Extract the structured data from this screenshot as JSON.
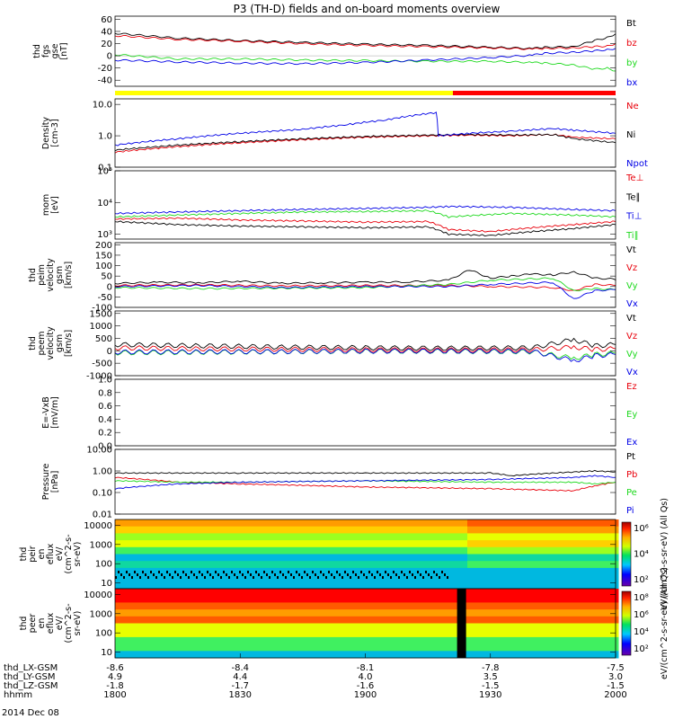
{
  "title": "P3 (TH-D) fields and on-board moments overview",
  "date_label": "2014 Dec 08",
  "colors": {
    "black": "#000000",
    "red": "#e8000b",
    "green": "#1ed91e",
    "blue": "#0000e6"
  },
  "chart_data": [
    {
      "type": "line",
      "id": "fgs",
      "ylabel": [
        "thd",
        "fgs",
        "gse",
        "[nT]"
      ],
      "ylim": [
        -50,
        65
      ],
      "yticks": [
        -40,
        -20,
        0,
        20,
        40,
        60
      ],
      "legend": [
        "Bt",
        "bz",
        "by",
        "bx"
      ],
      "legend_colors": [
        "black",
        "red",
        "green",
        "blue"
      ],
      "series": [
        {
          "name": "Bt",
          "color": "black",
          "x": [
            1800,
            1815,
            1830,
            1845,
            1900,
            1915,
            1930,
            1940,
            1943,
            1950,
            1955,
            1958,
            2000
          ],
          "y": [
            37,
            29,
            25,
            22,
            19,
            17,
            14,
            12,
            14,
            15,
            25,
            30,
            36
          ]
        },
        {
          "name": "bz",
          "color": "red",
          "x": [
            1800,
            1815,
            1830,
            1845,
            1900,
            1915,
            1930,
            1940,
            1943,
            1950,
            1955,
            1958,
            2000
          ],
          "y": [
            33,
            27,
            24,
            20,
            17,
            15,
            13,
            11,
            12,
            13,
            15,
            16,
            20
          ]
        },
        {
          "name": "by",
          "color": "green",
          "x": [
            1800,
            1815,
            1830,
            1845,
            1900,
            1915,
            1930,
            1940,
            1943,
            1950,
            1955,
            1958,
            2000
          ],
          "y": [
            2,
            -5,
            -5,
            -7,
            -8,
            -9,
            -9,
            -11,
            -12,
            -15,
            -22,
            -20,
            -25
          ]
        },
        {
          "name": "bx",
          "color": "blue",
          "x": [
            1800,
            1815,
            1830,
            1845,
            1900,
            1915,
            1930,
            1940,
            1943,
            1950,
            1955,
            1958,
            2000
          ],
          "y": [
            -7,
            -10,
            -12,
            -13,
            -11,
            -7,
            -3,
            1,
            4,
            6,
            8,
            10,
            12
          ]
        }
      ]
    },
    {
      "type": "line",
      "id": "density",
      "log": true,
      "ylabel": [
        "Density",
        "[cm-3]"
      ],
      "ylim": [
        0.1,
        15
      ],
      "yticks": [
        0.1,
        1.0,
        10.0
      ],
      "ytick_labels": [
        "0.1",
        "1.0",
        "10.0"
      ],
      "legend": [
        "Ne",
        "Ni",
        "Npot"
      ],
      "legend_colors": [
        "red",
        "black",
        "blue"
      ],
      "series": [
        {
          "name": "Ne",
          "color": "red",
          "x": [
            1800,
            1815,
            1830,
            1845,
            1900,
            1915,
            1925,
            1935,
            1945,
            1950,
            2000
          ],
          "y": [
            0.3,
            0.45,
            0.6,
            0.75,
            0.9,
            1.0,
            1.05,
            1.0,
            1.1,
            0.9,
            0.8
          ]
        },
        {
          "name": "Ni",
          "color": "black",
          "x": [
            1800,
            1815,
            1830,
            1845,
            1900,
            1915,
            1925,
            1935,
            1945,
            1950,
            2000
          ],
          "y": [
            0.35,
            0.5,
            0.65,
            0.8,
            0.95,
            1.05,
            1.1,
            1.05,
            1.1,
            0.8,
            0.6
          ]
        },
        {
          "name": "Npot",
          "color": "blue",
          "x": [
            1800,
            1815,
            1830,
            1845,
            1855,
            1905,
            1917,
            1917.5,
            1925,
            1935,
            1945,
            1950,
            2000
          ],
          "y": [
            0.5,
            0.8,
            1.2,
            1.6,
            2.2,
            3.2,
            5.5,
            1.0,
            1.2,
            1.4,
            1.7,
            1.5,
            1.2
          ]
        }
      ]
    },
    {
      "type": "line",
      "id": "temperature",
      "log": true,
      "ylabel": [
        "mom",
        "[eV]"
      ],
      "ylim": [
        700,
        100000
      ],
      "yticks": [
        1000,
        10000,
        100000
      ],
      "ytick_labels": [
        "10³",
        "10⁴",
        "10⁵"
      ],
      "legend": [
        "Te⊥",
        "Te∥",
        "Ti⊥",
        "Ti∥"
      ],
      "legend_colors": [
        "red",
        "black",
        "blue",
        "green"
      ],
      "series": [
        {
          "name": "Ti⊥",
          "color": "blue",
          "x": [
            1800,
            1815,
            1830,
            1845,
            1900,
            1915,
            1920,
            1935,
            1950,
            2000
          ],
          "y": [
            4500,
            5000,
            5500,
            6000,
            6500,
            7000,
            7500,
            7000,
            6000,
            5500
          ]
        },
        {
          "name": "Ti∥",
          "color": "green",
          "x": [
            1800,
            1815,
            1830,
            1845,
            1900,
            1915,
            1920,
            1935,
            1950,
            2000
          ],
          "y": [
            3500,
            4000,
            4500,
            5000,
            5200,
            5500,
            3500,
            4500,
            4000,
            3500
          ]
        },
        {
          "name": "Te⊥",
          "color": "red",
          "x": [
            1800,
            1815,
            1830,
            1845,
            1900,
            1915,
            1920,
            1930,
            1950,
            2000
          ],
          "y": [
            3000,
            3200,
            2800,
            2600,
            2400,
            2500,
            1400,
            1200,
            2000,
            2500
          ]
        },
        {
          "name": "Te∥",
          "color": "black",
          "x": [
            1800,
            1815,
            1830,
            1845,
            1900,
            1915,
            1920,
            1930,
            1950,
            2000
          ],
          "y": [
            2500,
            2000,
            1800,
            1700,
            1600,
            1700,
            1000,
            900,
            1500,
            2000
          ]
        }
      ]
    },
    {
      "type": "line",
      "id": "peim_velocity",
      "ylabel": [
        "thd",
        "peim",
        "velocity",
        "gsm",
        "[km/s]"
      ],
      "ylim": [
        -100,
        210
      ],
      "yticks": [
        -100,
        -50,
        0,
        50,
        100,
        150,
        200
      ],
      "legend": [
        "Vt",
        "Vz",
        "Vy",
        "Vx"
      ],
      "legend_colors": [
        "black",
        "red",
        "green",
        "blue"
      ],
      "series": [
        {
          "name": "Vt",
          "color": "black",
          "x": [
            1800,
            1810,
            1820,
            1830,
            1840,
            1850,
            1900,
            1910,
            1920,
            1925,
            1930,
            1935,
            1940,
            1945,
            1950,
            1955,
            1960,
            2000
          ],
          "y": [
            15,
            20,
            18,
            25,
            15,
            18,
            20,
            22,
            30,
            80,
            40,
            50,
            60,
            55,
            70,
            40,
            35,
            30
          ]
        },
        {
          "name": "Vz",
          "color": "red",
          "x": [
            1800,
            1820,
            1840,
            1900,
            1920,
            1930,
            1945,
            1950,
            1955,
            2000
          ],
          "y": [
            5,
            8,
            3,
            5,
            5,
            0,
            -5,
            -20,
            10,
            5
          ]
        },
        {
          "name": "Vy",
          "color": "green",
          "x": [
            1800,
            1820,
            1840,
            1900,
            1920,
            1930,
            1945,
            1950,
            1955,
            2000
          ],
          "y": [
            -5,
            -10,
            -8,
            -5,
            10,
            30,
            40,
            -20,
            -10,
            -15
          ]
        },
        {
          "name": "Vx",
          "color": "blue",
          "x": [
            1800,
            1820,
            1840,
            1900,
            1920,
            1930,
            1945,
            1950,
            1955,
            2000
          ],
          "y": [
            0,
            5,
            -5,
            0,
            0,
            10,
            20,
            -60,
            -20,
            -15
          ]
        }
      ]
    },
    {
      "type": "line",
      "id": "peem_velocity",
      "ylabel": [
        "thd",
        "peem",
        "velocity",
        "gsm",
        "[km/s]"
      ],
      "ylim": [
        -1000,
        1600
      ],
      "yticks": [
        -1000,
        -500,
        0,
        500,
        1000,
        1500
      ],
      "legend": [
        "Vt",
        "Vz",
        "Vy",
        "Vx"
      ],
      "legend_colors": [
        "black",
        "red",
        "green",
        "blue"
      ],
      "series": [
        {
          "name": "Vt",
          "color": "black",
          "x": [
            1800,
            1820,
            1840,
            1900,
            1920,
            1940,
            1950,
            1955,
            2000
          ],
          "y": [
            250,
            200,
            150,
            120,
            100,
            120,
            450,
            200,
            250
          ]
        },
        {
          "name": "Vz",
          "color": "red",
          "x": [
            1800,
            1820,
            1840,
            1900,
            1920,
            1940,
            1950,
            1955,
            2000
          ],
          "y": [
            120,
            80,
            60,
            40,
            30,
            40,
            150,
            50,
            80
          ]
        },
        {
          "name": "Vy",
          "color": "green",
          "x": [
            1800,
            1820,
            1840,
            1900,
            1920,
            1940,
            1950,
            1955,
            2000
          ],
          "y": [
            -80,
            -60,
            -40,
            -20,
            -20,
            -40,
            -300,
            -150,
            -100
          ]
        },
        {
          "name": "Vx",
          "color": "blue",
          "x": [
            1800,
            1820,
            1840,
            1900,
            1920,
            1940,
            1950,
            1955,
            2000
          ],
          "y": [
            -50,
            -40,
            -30,
            -10,
            -10,
            -20,
            -400,
            -200,
            -150
          ]
        }
      ]
    },
    {
      "type": "line",
      "id": "efield",
      "ylabel": [
        "E=-VxB",
        "[mV/m]"
      ],
      "ylim": [
        0,
        1
      ],
      "yticks": [
        0.0,
        0.2,
        0.4,
        0.6,
        0.8,
        1.0
      ],
      "ytick_labels": [
        "0.0",
        "0.2",
        "0.4",
        "0.6",
        "0.8",
        "1.0"
      ],
      "legend": [
        "Ez",
        "Ey",
        "Ex"
      ],
      "legend_colors": [
        "red",
        "green",
        "blue"
      ],
      "series": []
    },
    {
      "type": "line",
      "id": "pressure",
      "log": true,
      "ylabel": [
        "Pressure",
        "[nPa]"
      ],
      "ylim": [
        0.01,
        10
      ],
      "yticks": [
        0.01,
        0.1,
        1.0,
        10.0
      ],
      "ytick_labels": [
        "0.01",
        "0.10",
        "1.00",
        "10.00"
      ],
      "legend": [
        "Pt",
        "Pb",
        "Pe",
        "Pi"
      ],
      "legend_colors": [
        "black",
        "red",
        "green",
        "blue"
      ],
      "series": [
        {
          "name": "Pt",
          "color": "black",
          "x": [
            1800,
            1830,
            1900,
            1930,
            1935,
            1950,
            1955,
            2000
          ],
          "y": [
            0.8,
            0.8,
            0.8,
            0.8,
            0.6,
            0.9,
            1.0,
            0.9
          ]
        },
        {
          "name": "Pb",
          "color": "red",
          "x": [
            1800,
            1815,
            1830,
            1900,
            1930,
            1950,
            1955,
            2000
          ],
          "y": [
            0.5,
            0.3,
            0.25,
            0.18,
            0.15,
            0.12,
            0.2,
            0.3
          ]
        },
        {
          "name": "Pe",
          "color": "green",
          "x": [
            1800,
            1815,
            1830,
            1900,
            1930,
            1950,
            1955,
            2000
          ],
          "y": [
            0.35,
            0.3,
            0.3,
            0.35,
            0.3,
            0.3,
            0.25,
            0.3
          ]
        },
        {
          "name": "Pi",
          "color": "blue",
          "x": [
            1800,
            1815,
            1830,
            1900,
            1930,
            1950,
            1955,
            2000
          ],
          "y": [
            0.15,
            0.25,
            0.3,
            0.35,
            0.4,
            0.5,
            0.6,
            0.5
          ]
        }
      ]
    },
    {
      "type": "heatmap",
      "id": "peir_eflux",
      "log": true,
      "ylabel": [
        "thd",
        "peir",
        "en",
        "eflux",
        "eV/",
        "(cm^2-s-",
        "sr-eV)"
      ],
      "ylim": [
        5,
        20000
      ],
      "yticks": [
        10,
        100,
        1000,
        10000
      ],
      "ytick_labels": [
        "10",
        "100",
        "1000",
        "10000"
      ],
      "colorbar_label": "eV/(cm^2-s-sr-eV) (All Qs)",
      "colorbar_ticks": [
        "10²",
        "10⁴",
        "10⁶"
      ]
    },
    {
      "type": "heatmap",
      "id": "peer_eflux",
      "log": true,
      "ylabel": [
        "thd",
        "peer",
        "en",
        "eflux",
        "eV/",
        "(cm^2-s-",
        "sr-eV)"
      ],
      "ylim": [
        5,
        20000
      ],
      "yticks": [
        10,
        100,
        1000,
        10000
      ],
      "ytick_labels": [
        "10",
        "100",
        "1000",
        "10000"
      ],
      "colorbar_label": "eV/(cm^2-s-sr-eV) (All Qs)",
      "colorbar_ticks": [
        "10²",
        "10⁴",
        "10⁶",
        "10⁸"
      ]
    }
  ],
  "xaxis": {
    "xlim": [
      1800,
      2000
    ],
    "rows": [
      {
        "label": "thd_LX-GSM",
        "values": [
          "-8.6",
          "-8.4",
          "-8.1",
          "-7.8",
          "-7.5"
        ]
      },
      {
        "label": "thd_LY-GSM",
        "values": [
          "4.9",
          "4.4",
          "4.0",
          "3.5",
          "3.0"
        ]
      },
      {
        "label": "thd_LZ-GSM",
        "values": [
          "-1.8",
          "-1.7",
          "-1.6",
          "-1.5",
          "-1.5"
        ]
      },
      {
        "label": "hhmm",
        "values": [
          "1800",
          "1830",
          "1900",
          "1930",
          "2000"
        ]
      }
    ]
  }
}
